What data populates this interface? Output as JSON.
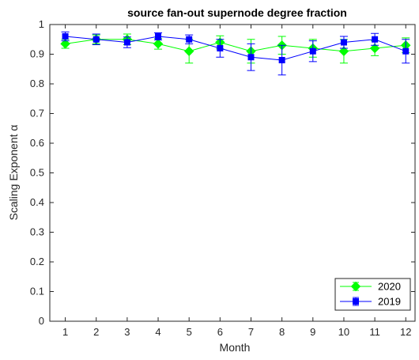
{
  "chart_data": {
    "type": "line",
    "title": "source fan-out supernode degree fraction",
    "xlabel": "Month",
    "ylabel": "Scaling Exponent α",
    "xlim": [
      0.5,
      12.3
    ],
    "ylim": [
      0,
      1
    ],
    "x": [
      1,
      2,
      3,
      4,
      5,
      6,
      7,
      8,
      9,
      10,
      11,
      12
    ],
    "xticks": [
      1,
      2,
      3,
      4,
      5,
      6,
      7,
      8,
      9,
      10,
      11,
      12
    ],
    "yticks": [
      0,
      0.1,
      0.2,
      0.3,
      0.4,
      0.5,
      0.6,
      0.7,
      0.8,
      0.9,
      1
    ],
    "ytick_labels": [
      "0",
      "0.1",
      "0.2",
      "0.3",
      "0.4",
      "0.5",
      "0.6",
      "0.7",
      "0.8",
      "0.9",
      "1"
    ],
    "grid": false,
    "legend_position": "bottom-right",
    "series": [
      {
        "name": "2020",
        "color": "#00ff00",
        "marker": "diamond",
        "values": [
          0.935,
          0.95,
          0.95,
          0.935,
          0.91,
          0.94,
          0.91,
          0.93,
          0.92,
          0.91,
          0.92,
          0.93
        ],
        "error": [
          0.015,
          0.015,
          0.018,
          0.018,
          0.04,
          0.022,
          0.04,
          0.03,
          0.03,
          0.04,
          0.025,
          0.025
        ]
      },
      {
        "name": "2019",
        "color": "#0000ff",
        "marker": "square",
        "values": [
          0.96,
          0.95,
          0.94,
          0.96,
          0.95,
          0.92,
          0.89,
          0.88,
          0.91,
          0.94,
          0.95,
          0.91
        ],
        "error": [
          0.015,
          0.018,
          0.018,
          0.012,
          0.015,
          0.03,
          0.045,
          0.05,
          0.035,
          0.02,
          0.02,
          0.04
        ]
      }
    ]
  }
}
